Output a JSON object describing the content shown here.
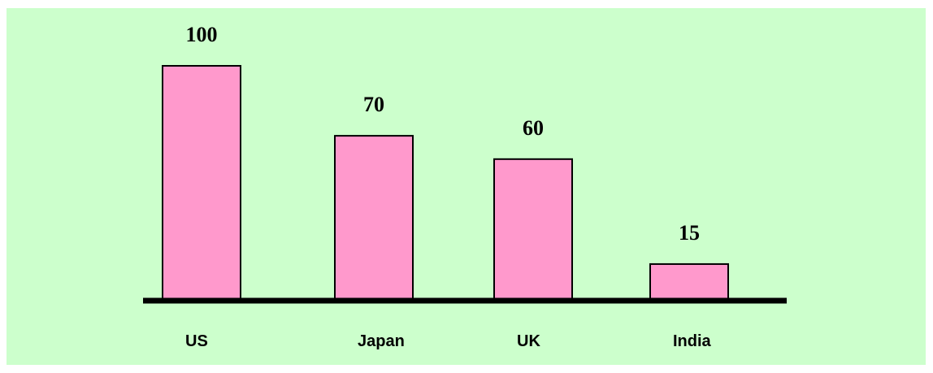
{
  "chart_data": {
    "type": "bar",
    "categories": [
      "US",
      "Japan",
      "UK",
      "India"
    ],
    "values": [
      100,
      70,
      60,
      15
    ],
    "data_labels": [
      "100",
      "70",
      "60",
      "15"
    ],
    "title": "",
    "xlabel": "",
    "ylabel": "",
    "ylim": [
      0,
      120
    ],
    "grid": false,
    "legend": "none",
    "colors": {
      "background": "#ccffcc",
      "bar_fill": "#ff99cc",
      "bar_stroke": "#000000",
      "axis": "#000000"
    }
  }
}
